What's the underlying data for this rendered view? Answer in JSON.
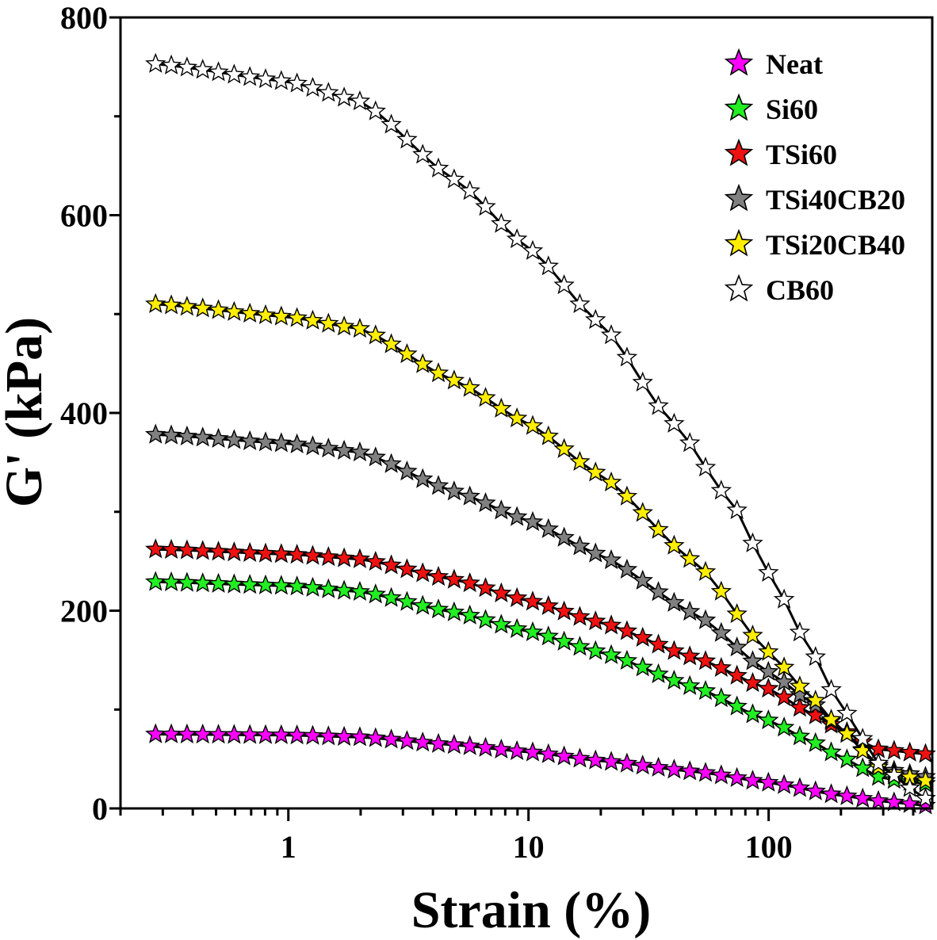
{
  "chart_data": {
    "type": "line",
    "title": "",
    "xlabel": "Strain (%)",
    "ylabel": "G' (kPa)",
    "xscale": "log",
    "xlim": [
      0.2,
      480
    ],
    "ylim": [
      0,
      800
    ],
    "x_ticks": [
      1,
      10,
      100
    ],
    "x_tick_labels": [
      "1",
      "10",
      "100"
    ],
    "y_ticks": [
      0,
      200,
      400,
      600,
      800
    ],
    "y_tick_labels": [
      "0",
      "200",
      "400",
      "600",
      "800"
    ],
    "marker": "star",
    "grid": false,
    "legend_position": "top-right",
    "x_start": 0.28,
    "x_end": 450,
    "points_per_series": 50,
    "series": [
      {
        "name": "Neat",
        "color": "#ff00ff",
        "curve": [
          [
            0.28,
            75
          ],
          [
            1,
            74
          ],
          [
            2,
            72
          ],
          [
            5,
            64
          ],
          [
            10,
            57
          ],
          [
            20,
            48
          ],
          [
            50,
            37
          ],
          [
            100,
            26
          ],
          [
            200,
            13
          ],
          [
            300,
            7
          ],
          [
            450,
            3
          ]
        ]
      },
      {
        "name": "Si60",
        "color": "#22ee22",
        "curve": [
          [
            0.28,
            229
          ],
          [
            1,
            225
          ],
          [
            2,
            219
          ],
          [
            5,
            198
          ],
          [
            10,
            179
          ],
          [
            20,
            158
          ],
          [
            50,
            122
          ],
          [
            100,
            89
          ],
          [
            150,
            68
          ],
          [
            200,
            52
          ],
          [
            300,
            30
          ],
          [
            450,
            25
          ]
        ]
      },
      {
        "name": "TSi60",
        "color": "#ee1111",
        "curve": [
          [
            0.28,
            262
          ],
          [
            1,
            257
          ],
          [
            2,
            252
          ],
          [
            5,
            231
          ],
          [
            10,
            210
          ],
          [
            20,
            188
          ],
          [
            50,
            152
          ],
          [
            100,
            121
          ],
          [
            150,
            96
          ],
          [
            200,
            80
          ],
          [
            280,
            60
          ],
          [
            450,
            55
          ]
        ]
      },
      {
        "name": "TSi40CB20",
        "color": "#808080",
        "curve": [
          [
            0.28,
            378
          ],
          [
            1,
            369
          ],
          [
            2,
            360
          ],
          [
            5,
            320
          ],
          [
            10,
            291
          ],
          [
            20,
            256
          ],
          [
            50,
            196
          ],
          [
            100,
            138
          ],
          [
            150,
            108
          ],
          [
            200,
            80
          ],
          [
            300,
            40
          ],
          [
            450,
            32
          ]
        ]
      },
      {
        "name": "TSi20CB40",
        "color": "#ffee00",
        "curve": [
          [
            0.28,
            510
          ],
          [
            1,
            497
          ],
          [
            2,
            485
          ],
          [
            5,
            432
          ],
          [
            10,
            389
          ],
          [
            20,
            337
          ],
          [
            50,
            248
          ],
          [
            100,
            158
          ],
          [
            150,
            113
          ],
          [
            200,
            80
          ],
          [
            300,
            38
          ],
          [
            450,
            28
          ]
        ]
      },
      {
        "name": "CB60",
        "color": "#ffffff",
        "curve": [
          [
            0.28,
            753
          ],
          [
            1,
            735
          ],
          [
            2,
            715
          ],
          [
            5,
            635
          ],
          [
            10,
            567
          ],
          [
            20,
            490
          ],
          [
            40,
            390
          ],
          [
            70,
            310
          ],
          [
            100,
            238
          ],
          [
            150,
            160
          ],
          [
            200,
            103
          ],
          [
            300,
            40
          ],
          [
            450,
            10
          ]
        ]
      }
    ]
  }
}
